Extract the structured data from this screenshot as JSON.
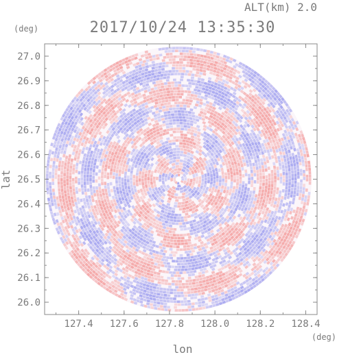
{
  "chart_data": {
    "type": "heatmap",
    "title": "2017/10/24 13:35:30",
    "subtitle": "ALT(km) 2.0",
    "xlabel": "lon",
    "ylabel": "lat",
    "xunit": "(deg)",
    "yunit": "(deg)",
    "xlim": [
      127.25,
      128.45
    ],
    "ylim": [
      25.95,
      27.05
    ],
    "xticks": [
      127.4,
      127.6,
      127.8,
      128.0,
      128.2,
      128.4
    ],
    "xtick_labels": [
      "127.4",
      "127.6",
      "127.8",
      "128.0",
      "128.2",
      "128.4"
    ],
    "yticks": [
      27.0,
      26.9,
      26.8,
      26.7,
      26.6,
      26.5,
      26.4,
      26.3,
      26.2,
      26.1,
      26.0
    ],
    "ytick_labels": [
      "27.0",
      "26.9",
      "26.8",
      "26.7",
      "26.6",
      "26.5",
      "26.4",
      "26.3",
      "26.2",
      "26.1",
      "26.0"
    ],
    "radar_center": [
      127.84,
      26.5
    ],
    "radar_radius_deg": 0.54,
    "colors": {
      "positive": "#f4a6a6",
      "negative": "#a8a8f0",
      "frame": "#8a8a8a",
      "text": "#7a7a7a"
    },
    "grid": false,
    "legend": "none"
  }
}
